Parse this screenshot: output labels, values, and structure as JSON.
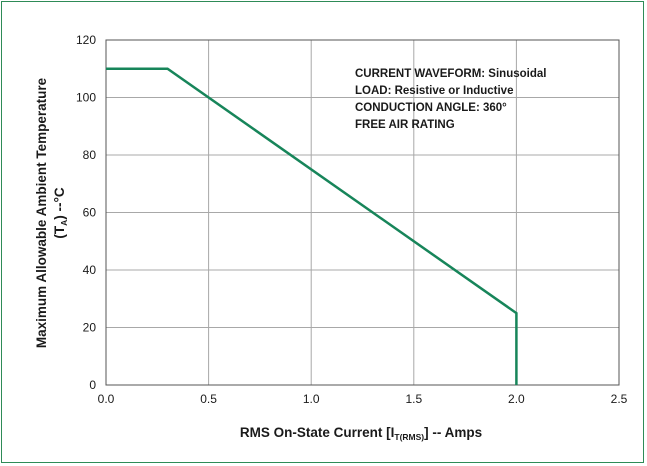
{
  "chart_data": {
    "type": "line",
    "x": [
      0,
      0.3,
      2.0,
      2.0
    ],
    "series": [
      {
        "values": [
          110,
          110,
          25,
          0
        ]
      }
    ],
    "xlim": [
      0,
      2.5
    ],
    "ylim": [
      0,
      120
    ],
    "xticks": [
      "0.0",
      "0.5",
      "1.0",
      "1.5",
      "2.0",
      "2.5"
    ],
    "yticks": [
      "0",
      "20",
      "40",
      "60",
      "80",
      "100",
      "120"
    ],
    "grid": true,
    "xlabel": {
      "main": "RMS On-State Current [I",
      "sub": "T(RMS)",
      "end": "] -- Amps"
    },
    "ylabel": {
      "line1": "Maximum Allowable Ambient Temperature",
      "line2_open": "(T",
      "line2_sub": "A",
      "line2_close": ") --°C"
    },
    "annotations": [
      "CURRENT WAVEFORM: Sinusoidal",
      "LOAD: Resistive or Inductive",
      "CONDUCTION ANGLE: 360°",
      "FREE AIR RATING"
    ]
  },
  "colors": {
    "line": "#17855a",
    "grid": "#a8a8a8",
    "axis": "#555555",
    "frame": "#2e8b57"
  }
}
